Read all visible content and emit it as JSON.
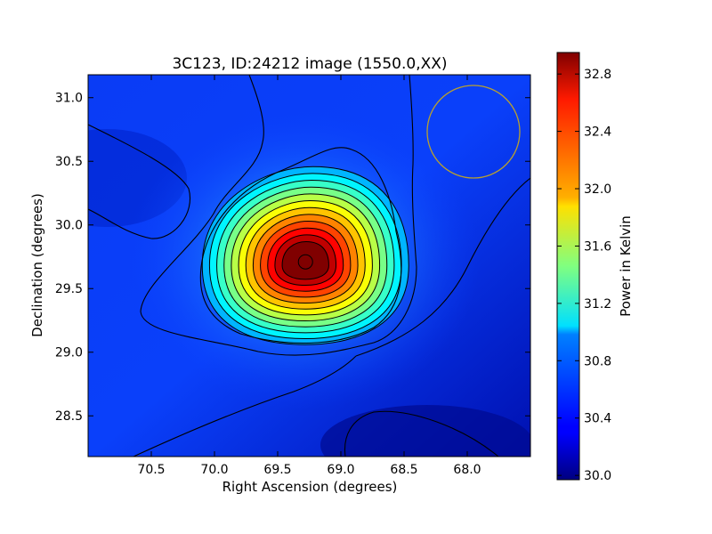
{
  "chart_data": {
    "type": "heatmap",
    "title": "3C123, ID:24212 image (1550.0,XX)",
    "xlabel": "Right Ascension (degrees)",
    "ylabel": "Declination (degrees)",
    "colorbar_label": "Power in Kelvin",
    "colormap": "jet",
    "x_inverted": true,
    "xlim": [
      71.0,
      67.5
    ],
    "ylim": [
      28.18,
      31.18
    ],
    "x_ticks": [
      70.5,
      70.0,
      69.5,
      69.0,
      68.5,
      68.0
    ],
    "y_ticks": [
      28.5,
      29.0,
      29.5,
      30.0,
      30.5,
      31.0
    ],
    "x_tick_labels": [
      "70.5",
      "70.0",
      "69.5",
      "69.0",
      "68.5",
      "68.0"
    ],
    "y_tick_labels": [
      "28.5",
      "29.0",
      "29.5",
      "30.0",
      "30.5",
      "31.0"
    ],
    "clim": [
      29.97,
      32.95
    ],
    "colorbar_ticks": [
      30.0,
      30.4,
      30.8,
      31.2,
      31.6,
      32.0,
      32.4,
      32.8
    ],
    "colorbar_tick_labels": [
      "30.0",
      "30.4",
      "30.8",
      "31.2",
      "31.6",
      "32.0",
      "32.4",
      "32.8"
    ],
    "source_peak": {
      "ra": 69.28,
      "dec": 29.71,
      "value": 32.95
    },
    "beam_circle": {
      "ra": 67.98,
      "dec": 30.73,
      "radius_deg": 0.37,
      "color": "#b8a030"
    },
    "contour_color": "#000000",
    "grid": false
  }
}
